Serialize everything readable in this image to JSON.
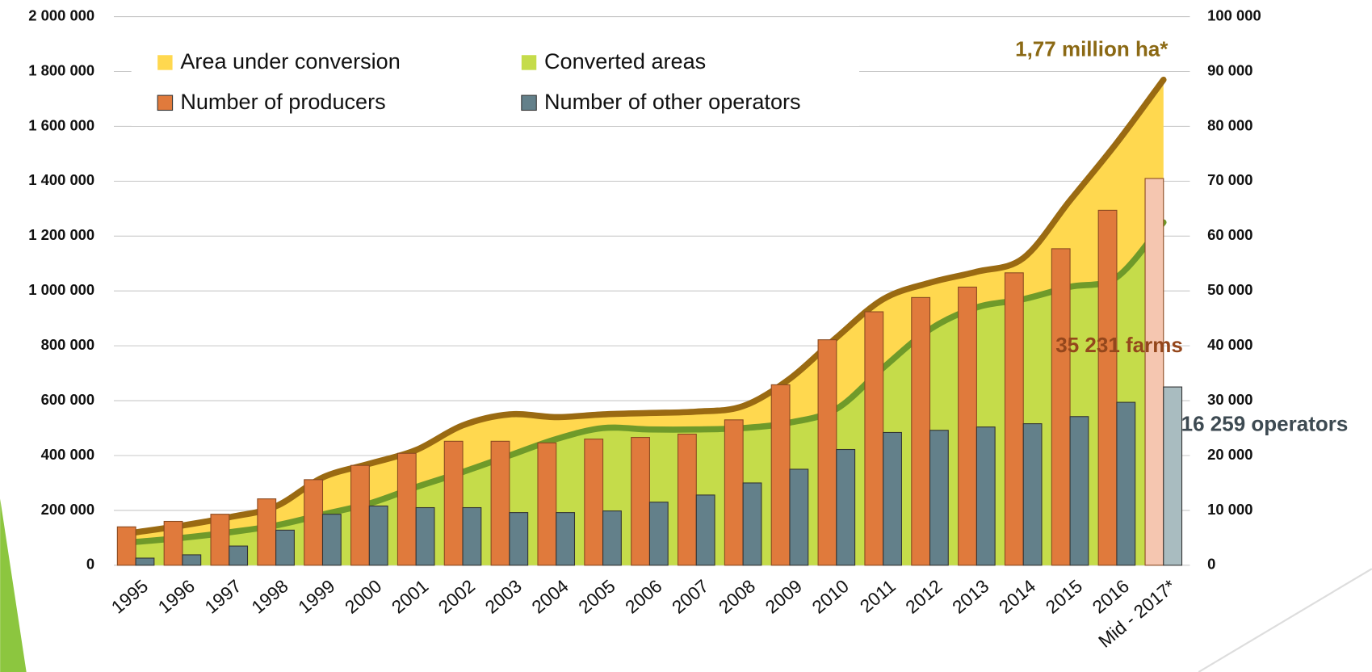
{
  "chart_data": {
    "type": "combo",
    "categories": [
      "1995",
      "1996",
      "1997",
      "1998",
      "1999",
      "2000",
      "2001",
      "2002",
      "2003",
      "2004",
      "2005",
      "2006",
      "2007",
      "2008",
      "2009",
      "2010",
      "2011",
      "2012",
      "2013",
      "2014",
      "2015",
      "2016",
      "Mid - 2017*"
    ],
    "area_series": [
      {
        "name": "Converted areas",
        "color": "#c5dc4a",
        "line_color": "#6f9a2a",
        "values": [
          85000,
          100000,
          120000,
          145000,
          185000,
          225000,
          285000,
          340000,
          400000,
          460000,
          500000,
          495000,
          495000,
          500000,
          520000,
          570000,
          720000,
          860000,
          940000,
          970000,
          1015000,
          1050000,
          1250000
        ]
      },
      {
        "name": "Area under conversion",
        "color": "#ffd84f",
        "line_color": "#9a6a12",
        "values": [
          35000,
          45000,
          55000,
          70000,
          135000,
          145000,
          135000,
          170000,
          150000,
          80000,
          50000,
          60000,
          65000,
          80000,
          160000,
          260000,
          250000,
          170000,
          130000,
          150000,
          315000,
          490000,
          520000
        ]
      }
    ],
    "bar_series": [
      {
        "name": "Number of producers",
        "color": "#e07a3c",
        "last_color": "#f5c6b0",
        "axis": "y2",
        "values": [
          7000,
          8000,
          9300,
          12100,
          15600,
          18200,
          20400,
          22600,
          22600,
          22300,
          23000,
          23300,
          23900,
          26500,
          32900,
          41100,
          46200,
          48800,
          50700,
          53300,
          57700,
          64700,
          70500
        ]
      },
      {
        "name": "Number of other operators",
        "color": "#63808a",
        "last_color": "#a9bcc0",
        "axis": "y2",
        "values": [
          1300,
          1900,
          3500,
          6400,
          9300,
          10800,
          10500,
          10500,
          9600,
          9600,
          9900,
          11500,
          12800,
          15000,
          17500,
          21100,
          24200,
          24600,
          25200,
          25800,
          27100,
          29700,
          32500
        ]
      }
    ],
    "ylim": [
      0,
      2000000
    ],
    "yticks": [
      0,
      {
        "value": 200000,
        "label": "200 000"
      },
      {
        "value": 400000,
        "label": "400 000"
      },
      {
        "value": 600000,
        "label": "600 000"
      },
      {
        "value": 800000,
        "label": "800 000"
      },
      {
        "value": 1000000,
        "label": "1 000 000"
      },
      {
        "value": 1200000,
        "label": "1 200 000"
      },
      {
        "value": 1400000,
        "label": "1 400 000"
      },
      {
        "value": 1600000,
        "label": "1 600 000"
      },
      {
        "value": 1800000,
        "label": "1 800 000"
      },
      {
        "value": 2000000,
        "label": "2 000 000"
      }
    ],
    "y2lim": [
      0,
      100000
    ],
    "y2ticks": [
      0,
      {
        "value": 10000,
        "label": "10 000"
      },
      {
        "value": 20000,
        "label": "20 000"
      },
      {
        "value": 30000,
        "label": "30 000"
      },
      {
        "value": 40000,
        "label": "40 000"
      },
      {
        "value": 50000,
        "label": "50 000"
      },
      {
        "value": 60000,
        "label": "60 000"
      },
      {
        "value": 70000,
        "label": "70 000"
      },
      {
        "value": 80000,
        "label": "80 000"
      },
      {
        "value": 90000,
        "label": "90 000"
      },
      {
        "value": 100000,
        "label": "100 000"
      }
    ],
    "grid": true,
    "legend": "upper left",
    "annotations": [
      "1,77 million ha*",
      "35 231 farms",
      "16 259 operators"
    ]
  }
}
